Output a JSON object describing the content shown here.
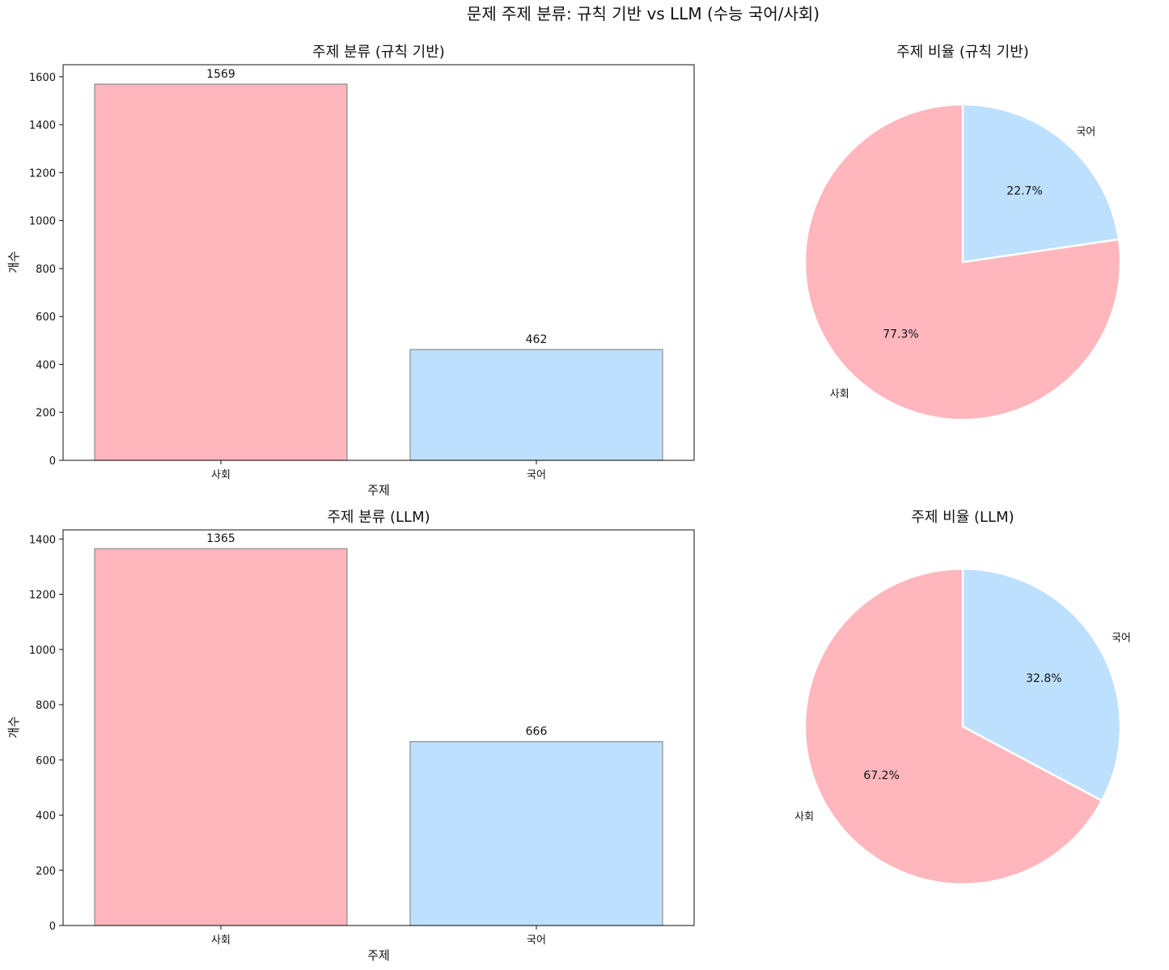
{
  "figure": {
    "title": "문제 주제 분류: 규칙 기반 vs LLM (수능 국어/사회)"
  },
  "colors": {
    "사회": "#ffb6bd",
    "국어": "#bde0fe",
    "bar_edge": "#8c8c8c",
    "pie_edge": "#ffffff"
  },
  "chart_data": [
    {
      "type": "bar",
      "title": "주제 분류 (규칙 기반)",
      "xlabel": "주제",
      "ylabel": "개수",
      "categories": [
        "사회",
        "국어"
      ],
      "values": [
        1569,
        462
      ],
      "ylim": [
        0,
        1650
      ],
      "yticks": [
        0,
        200,
        400,
        600,
        800,
        1000,
        1200,
        1400,
        1600
      ],
      "grid": false
    },
    {
      "type": "pie",
      "title": "주제 비율 (규칙 기반)",
      "labels": [
        "국어",
        "사회"
      ],
      "values": [
        22.7,
        77.3
      ],
      "autopct": [
        "22.7%",
        "77.3%"
      ],
      "start_angle": "top, clockwise"
    },
    {
      "type": "bar",
      "title": "주제 분류 (LLM)",
      "xlabel": "주제",
      "ylabel": "개수",
      "categories": [
        "사회",
        "국어"
      ],
      "values": [
        1365,
        666
      ],
      "ylim": [
        0,
        1433
      ],
      "yticks": [
        0,
        200,
        400,
        600,
        800,
        1000,
        1200,
        1400
      ],
      "grid": false
    },
    {
      "type": "pie",
      "title": "주제 비율 (LLM)",
      "labels": [
        "국어",
        "사회"
      ],
      "values": [
        32.8,
        67.2
      ],
      "autopct": [
        "32.8%",
        "67.2%"
      ],
      "start_angle": "top, clockwise"
    }
  ]
}
